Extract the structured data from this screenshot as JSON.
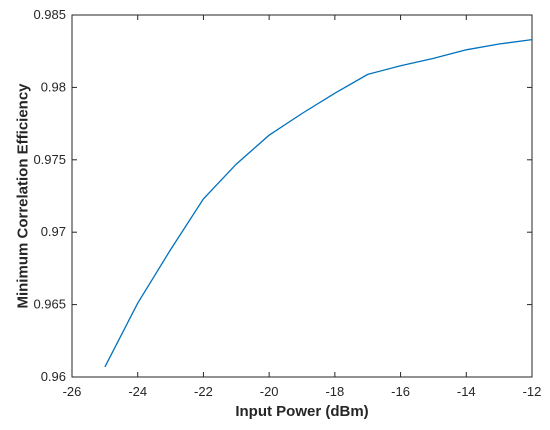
{
  "chart_data": {
    "type": "line",
    "title": "",
    "xlabel": "Input Power (dBm)",
    "ylabel": "Minimum Correlation Efficiency",
    "xlim": [
      -26,
      -12
    ],
    "ylim": [
      0.96,
      0.985
    ],
    "xticks": [
      "-26",
      "-24",
      "-22",
      "-20",
      "-18",
      "-16",
      "-14",
      "-12"
    ],
    "yticks": [
      "0.96",
      "0.965",
      "0.97",
      "0.975",
      "0.98",
      "0.985"
    ],
    "grid": false,
    "legend": "none",
    "line_color": "#0072BD",
    "series": [
      {
        "x": [
          -25,
          -24,
          -23,
          -22,
          -21,
          -20,
          -19,
          -18,
          -17,
          -16,
          -15,
          -14,
          -13,
          -12
        ],
        "y": [
          0.9607,
          0.9651,
          0.9688,
          0.9723,
          0.9747,
          0.9767,
          0.9782,
          0.9796,
          0.9809,
          0.9815,
          0.982,
          0.9826,
          0.983,
          0.9833
        ]
      }
    ]
  }
}
